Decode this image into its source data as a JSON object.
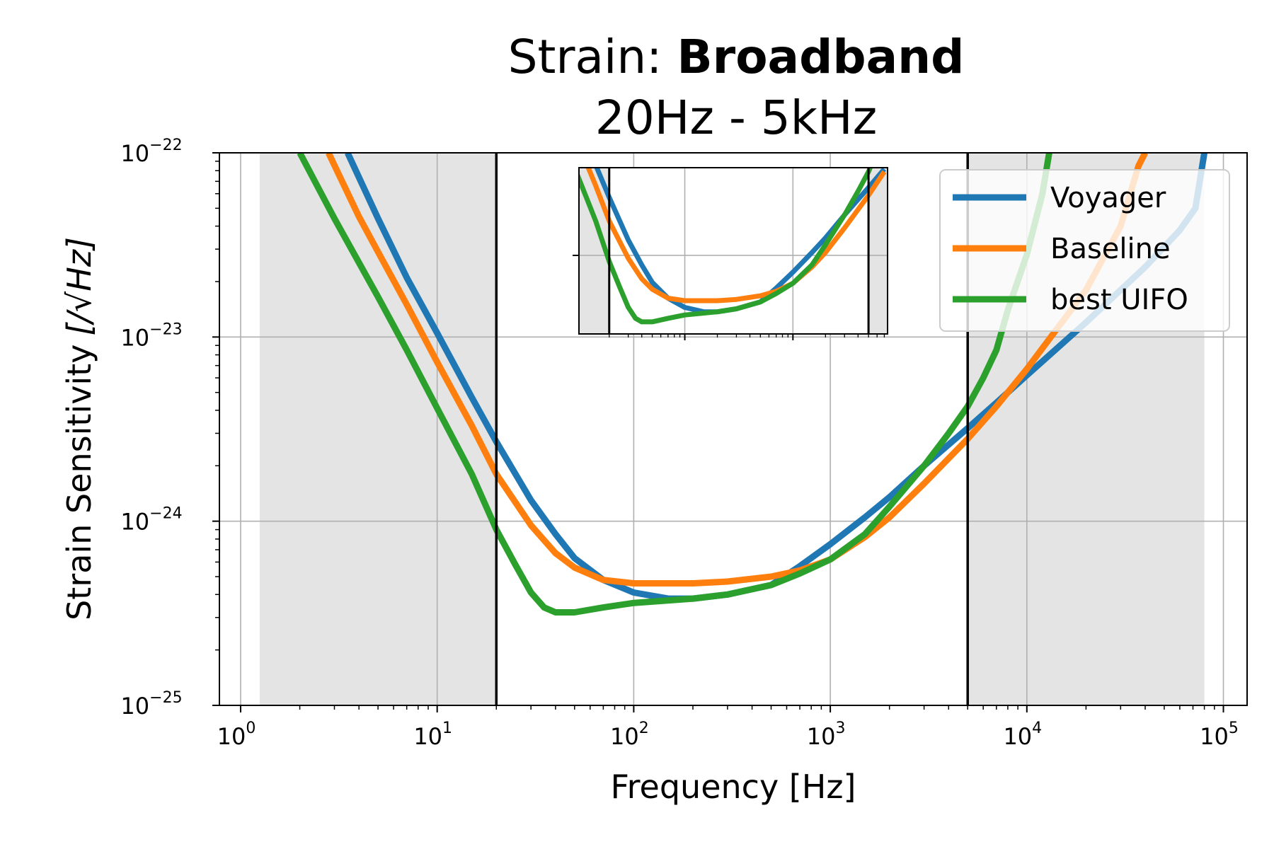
{
  "chart_data": {
    "type": "line",
    "title": {
      "prefix": "Strain: ",
      "bold": "Broadband",
      "subtitle": "20Hz - 5kHz"
    },
    "xlabel": "Frequency [Hz]",
    "ylabel": "Strain Sensitivity",
    "ylabel_unit": "[/√Hz]",
    "xscale": "log",
    "yscale": "log",
    "xlim": [
      0.78,
      132000
    ],
    "ylim": [
      1e-25,
      1e-22
    ],
    "x_ticks": [
      {
        "value": 1,
        "base": "10",
        "exp": "0"
      },
      {
        "value": 10,
        "base": "10",
        "exp": "1"
      },
      {
        "value": 100,
        "base": "10",
        "exp": "2"
      },
      {
        "value": 1000,
        "base": "10",
        "exp": "3"
      },
      {
        "value": 10000,
        "base": "10",
        "exp": "4"
      },
      {
        "value": 100000,
        "base": "10",
        "exp": "5"
      }
    ],
    "y_ticks": [
      {
        "value": 1e-25,
        "base": "10",
        "exp": "−25"
      },
      {
        "value": 1e-24,
        "base": "10",
        "exp": "−24"
      },
      {
        "value": 1e-23,
        "base": "10",
        "exp": "−23"
      },
      {
        "value": 1e-22,
        "base": "10",
        "exp": "−22"
      }
    ],
    "grid": true,
    "legend_position": "top-right",
    "shaded_regions": [
      {
        "from": 1.25,
        "to": 20,
        "color": "#e4e4e4"
      },
      {
        "from": 5000,
        "to": 80000,
        "color": "#e4e4e4"
      }
    ],
    "vertical_lines": [
      20,
      5000
    ],
    "series": [
      {
        "name": "Voyager",
        "color": "#1f77b4",
        "points": [
          [
            3.5,
            1e-22
          ],
          [
            5,
            4.4e-23
          ],
          [
            7,
            2.1e-23
          ],
          [
            10,
            1.05e-23
          ],
          [
            15,
            4.7e-24
          ],
          [
            20,
            2.7e-24
          ],
          [
            30,
            1.3e-24
          ],
          [
            40,
            8.5e-25
          ],
          [
            50,
            6.3e-25
          ],
          [
            70,
            4.8e-25
          ],
          [
            100,
            4.1e-25
          ],
          [
            150,
            3.8e-25
          ],
          [
            200,
            3.8e-25
          ],
          [
            300,
            4e-25
          ],
          [
            500,
            4.5e-25
          ],
          [
            700,
            5.7e-25
          ],
          [
            1000,
            7.5e-25
          ],
          [
            1500,
            1.05e-24
          ],
          [
            2000,
            1.35e-24
          ],
          [
            3000,
            2e-24
          ],
          [
            5000,
            3.2e-24
          ],
          [
            7000,
            4.4e-24
          ],
          [
            10000,
            6.2e-24
          ],
          [
            20000,
            1.2e-23
          ],
          [
            40000,
            2.4e-23
          ],
          [
            60000,
            3.8e-23
          ],
          [
            72000,
            5e-23
          ],
          [
            80000,
            1e-22
          ]
        ]
      },
      {
        "name": "Baseline",
        "color": "#ff7f0e",
        "points": [
          [
            2.8,
            1e-22
          ],
          [
            4,
            4.5e-23
          ],
          [
            5,
            2.9e-23
          ],
          [
            7,
            1.5e-23
          ],
          [
            10,
            7.3e-24
          ],
          [
            15,
            3.3e-24
          ],
          [
            20,
            1.8e-24
          ],
          [
            30,
            9.5e-25
          ],
          [
            40,
            6.7e-25
          ],
          [
            50,
            5.6e-25
          ],
          [
            70,
            4.8e-25
          ],
          [
            100,
            4.6e-25
          ],
          [
            200,
            4.6e-25
          ],
          [
            300,
            4.7e-25
          ],
          [
            500,
            5e-25
          ],
          [
            700,
            5.4e-25
          ],
          [
            1000,
            6.2e-25
          ],
          [
            1500,
            8.2e-25
          ],
          [
            2000,
            1.05e-24
          ],
          [
            3000,
            1.6e-24
          ],
          [
            5000,
            2.8e-24
          ],
          [
            7000,
            4.2e-24
          ],
          [
            10000,
            6.7e-24
          ],
          [
            20000,
            1.8e-23
          ],
          [
            30000,
            4e-23
          ],
          [
            37000,
            8.5e-23
          ],
          [
            40000,
            1e-22
          ]
        ]
      },
      {
        "name": "best UIFO",
        "color": "#2ca02c",
        "points": [
          [
            2,
            1e-22
          ],
          [
            3,
            4.4e-23
          ],
          [
            5,
            1.65e-23
          ],
          [
            7,
            8.5e-24
          ],
          [
            10,
            4.1e-24
          ],
          [
            15,
            1.8e-24
          ],
          [
            20,
            9e-25
          ],
          [
            25,
            5.8e-25
          ],
          [
            30,
            4.1e-25
          ],
          [
            35,
            3.4e-25
          ],
          [
            40,
            3.2e-25
          ],
          [
            50,
            3.2e-25
          ],
          [
            70,
            3.4e-25
          ],
          [
            100,
            3.6e-25
          ],
          [
            200,
            3.8e-25
          ],
          [
            300,
            4e-25
          ],
          [
            500,
            4.5e-25
          ],
          [
            700,
            5.2e-25
          ],
          [
            1000,
            6.2e-25
          ],
          [
            1500,
            8.5e-25
          ],
          [
            2000,
            1.2e-24
          ],
          [
            3000,
            2e-24
          ],
          [
            4000,
            3e-24
          ],
          [
            5000,
            4.2e-24
          ],
          [
            6000,
            6e-24
          ],
          [
            7000,
            8.5e-24
          ],
          [
            8000,
            1.4e-23
          ],
          [
            10000,
            2.8e-23
          ],
          [
            12000,
            6e-23
          ],
          [
            13000,
            1e-22
          ]
        ]
      }
    ],
    "inset": {
      "series_fraction": "full range, compressed"
    }
  }
}
